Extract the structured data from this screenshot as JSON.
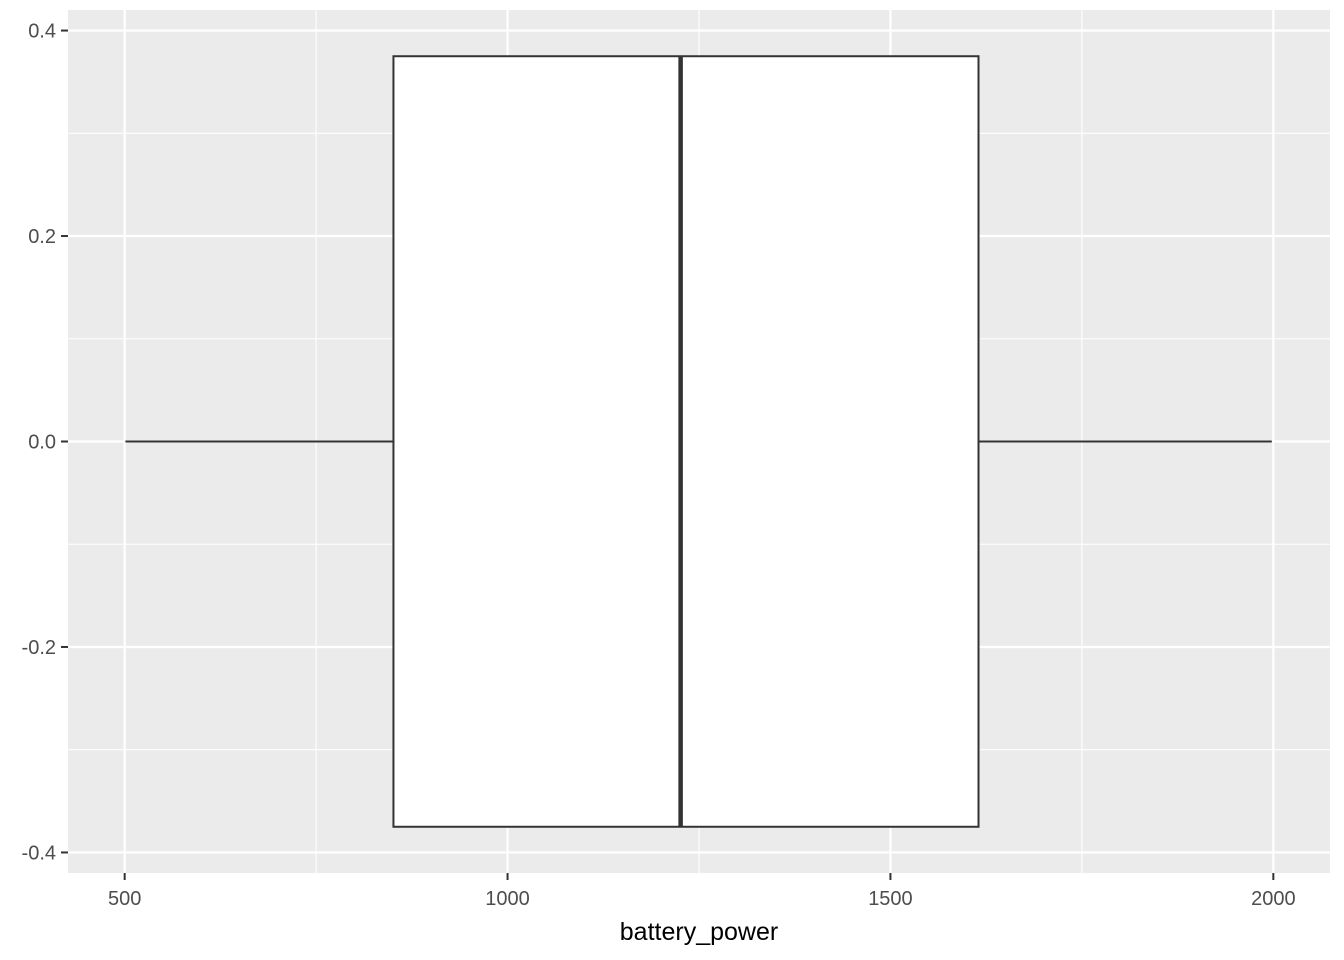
{
  "chart_data": {
    "type": "boxplot",
    "title": "",
    "xlabel": "battery_power",
    "ylabel": "",
    "xlim": [
      426,
      2074
    ],
    "ylim": [
      -0.42,
      0.42
    ],
    "x_ticks": [
      500,
      1000,
      1500,
      2000
    ],
    "x_tick_labels": [
      "500",
      "1000",
      "1500",
      "2000"
    ],
    "y_ticks": [
      0.4,
      0.2,
      0.0,
      -0.2,
      -0.4
    ],
    "y_tick_labels": [
      "0.4",
      "0.2",
      "0.0",
      "-0.2",
      "-0.4"
    ],
    "x_minor_ticks": [
      750,
      1250,
      1750
    ],
    "y_minor_ticks": [
      0.3,
      0.1,
      -0.1,
      -0.3
    ],
    "box": {
      "min": 501,
      "q1": 851,
      "median": 1226,
      "q3": 1615,
      "max": 1998,
      "y_center": 0.0,
      "half_width": 0.375
    },
    "grid": true,
    "legend": "none",
    "colors": {
      "panel_background": "#ebebeb",
      "grid_line": "#ffffff",
      "box_fill": "#ffffff",
      "box_stroke": "#333333",
      "tick_label": "#4d4d4d",
      "axis_title": "#000000"
    }
  }
}
